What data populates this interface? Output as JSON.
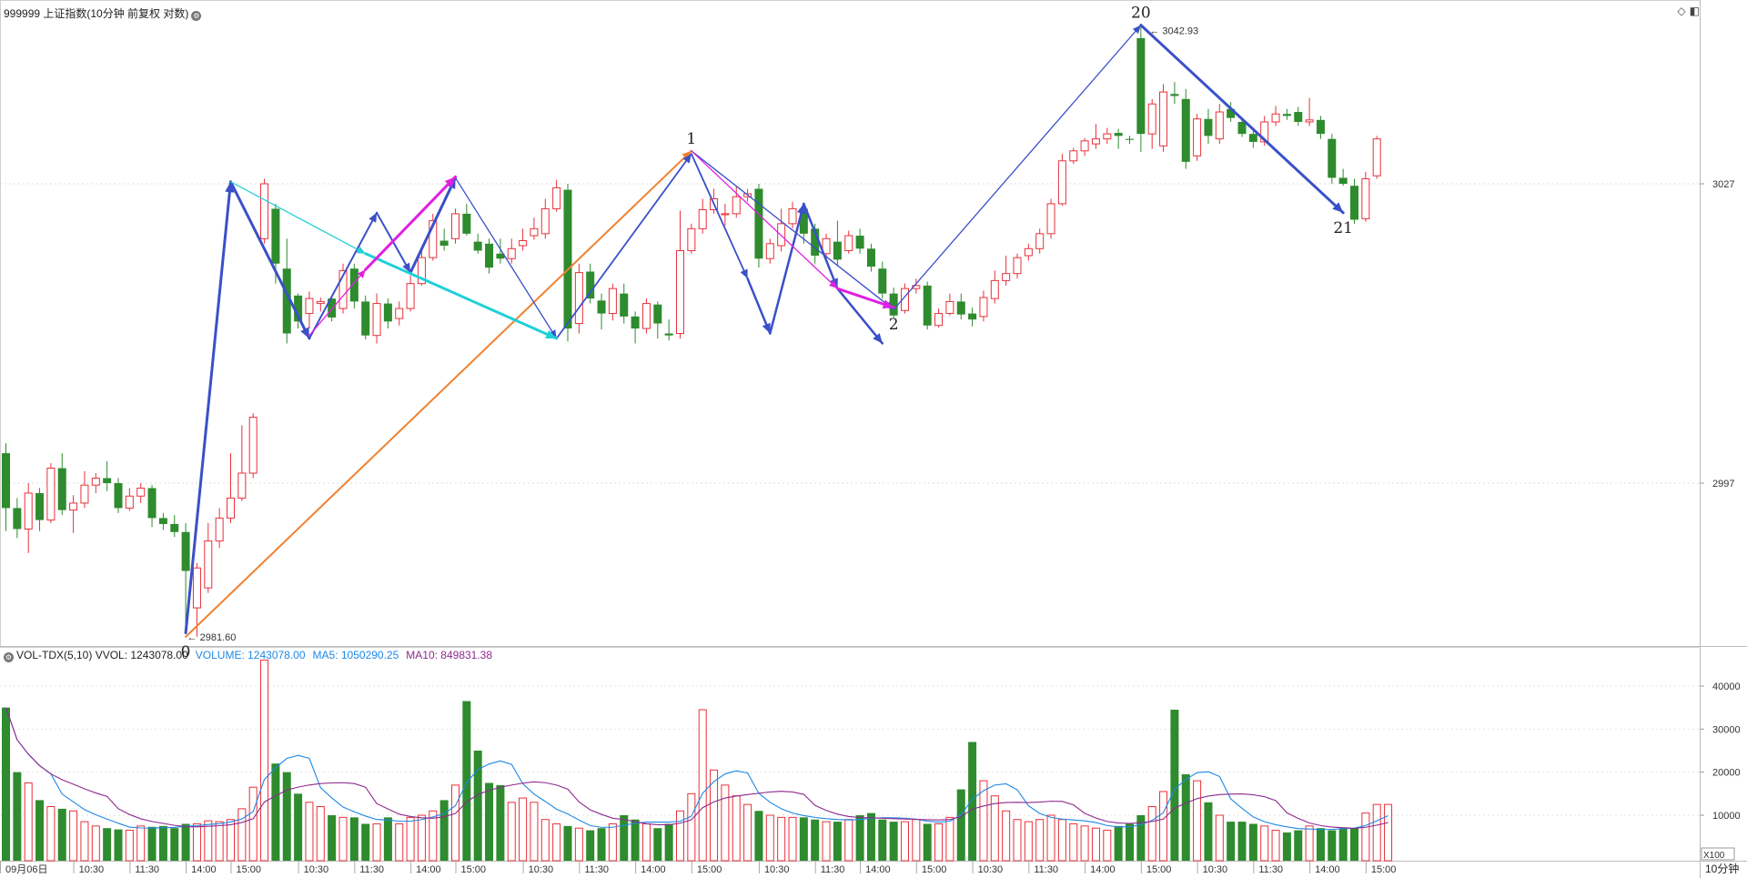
{
  "header": {
    "price_title": "999999 上证指数(10分钟 前复权 对数)",
    "vol_title": "VOL-TDX(5,10) VVOL: 1243078.00",
    "volume_label": "VOLUME: 1243078.00",
    "ma5_label": "MA5: 1050290.25",
    "ma10_label": "MA10: 849831.38"
  },
  "colors": {
    "up": "#e8313a",
    "down": "#2e8b2e",
    "volume": "#1e88e5",
    "ma5": "#1e88e5",
    "ma10": "#8e2a8e",
    "wave_blue": "#3a50c8",
    "wave_magenta": "#e020e0",
    "wave_cyan": "#20d0d8",
    "wave_orange": "#f08030"
  },
  "icons": [
    "gear-icon",
    "diamond-icon",
    "window-icon"
  ],
  "chart_data": {
    "type": "candlestick",
    "y_ticks": [
      "3027",
      "2997"
    ],
    "vol_ticks": [
      "40000",
      "30000",
      "20000",
      "10000"
    ],
    "vol_unit": "X100",
    "period_label": "10分钟",
    "x_labels": [
      "09月06日",
      "10:30",
      "11:30",
      "14:00",
      "15:00",
      "10:30",
      "11:30",
      "14:00",
      "15:00",
      "10:30",
      "11:30",
      "14:00",
      "15:00",
      "10:30",
      "11:30",
      "14:00",
      "15:00",
      "10:30",
      "11:30",
      "14:00",
      "15:00",
      "10:30",
      "11:30",
      "14:00",
      "15:00"
    ],
    "high_label": "3042.93",
    "low_label": "2981.60",
    "wave_labels": [
      {
        "text": "0",
        "bar": 16,
        "price": 2981.6
      },
      {
        "text": "1",
        "bar": 61,
        "price": 3030.3
      },
      {
        "text": "2",
        "bar": 79,
        "price": 3014.4
      },
      {
        "text": "20",
        "bar": 101,
        "price": 3042.9
      },
      {
        "text": "21",
        "bar": 119,
        "price": 3024.1
      }
    ],
    "candles": [
      [
        3000.0,
        2994.5,
        3001.0,
        2992.2
      ],
      [
        2994.5,
        2992.4,
        2995.5,
        2991.5
      ],
      [
        2992.4,
        2996.0,
        2997.0,
        2990.0
      ],
      [
        2996.0,
        2993.3,
        2996.5,
        2992.2
      ],
      [
        2993.3,
        2998.5,
        2999.0,
        2993.0
      ],
      [
        2998.5,
        2994.3,
        3000.0,
        2993.8
      ],
      [
        2994.3,
        2995.0,
        2995.8,
        2992.0
      ],
      [
        2995.0,
        2996.8,
        2998.2,
        2994.5
      ],
      [
        2996.8,
        2997.5,
        2998.0,
        2996.0
      ],
      [
        2997.5,
        2997.0,
        2999.2,
        2996.2
      ],
      [
        2997.0,
        2994.5,
        2997.5,
        2994.0
      ],
      [
        2994.5,
        2995.7,
        2996.5,
        2994.2
      ],
      [
        2995.7,
        2996.5,
        2997.0,
        2995.0
      ],
      [
        2996.5,
        2993.5,
        2996.8,
        2992.6
      ],
      [
        2993.5,
        2992.9,
        2994.0,
        2992.3
      ],
      [
        2992.9,
        2992.1,
        2993.8,
        2991.6
      ],
      [
        2992.1,
        2988.2,
        2993.0,
        2982.5
      ],
      [
        2984.5,
        2988.5,
        2989.0,
        2981.6
      ],
      [
        2986.5,
        2991.2,
        2993.0,
        2986.0
      ],
      [
        2991.2,
        2993.5,
        2994.5,
        2990.5
      ],
      [
        2993.5,
        2995.5,
        3000.0,
        2993.0
      ],
      [
        2995.5,
        2998.0,
        3002.8,
        2995.2
      ],
      [
        2998.0,
        3003.6,
        3004.0,
        2997.5
      ],
      [
        3021.5,
        3027.0,
        3027.5,
        3021.0
      ],
      [
        3024.5,
        3019.0,
        3025.0,
        3017.0
      ],
      [
        3018.5,
        3012.0,
        3021.5,
        3011.0
      ],
      [
        3015.8,
        3013.2,
        3016.0,
        3012.5
      ],
      [
        3014.0,
        3015.5,
        3016.2,
        3012.5
      ],
      [
        3015.0,
        3015.2,
        3015.6,
        3014.2
      ],
      [
        3015.5,
        3013.6,
        3015.7,
        3013.2
      ],
      [
        3014.5,
        3018.3,
        3019.0,
        3014.0
      ],
      [
        3018.5,
        3015.2,
        3019.0,
        3014.5
      ],
      [
        3015.2,
        3011.8,
        3015.8,
        3011.4
      ],
      [
        3011.8,
        3015.0,
        3016.0,
        3011.0
      ],
      [
        3015.0,
        3013.2,
        3015.5,
        3012.5
      ],
      [
        3013.5,
        3014.5,
        3015.2,
        3012.8
      ],
      [
        3014.5,
        3017.0,
        3017.8,
        3014.2
      ],
      [
        3017.0,
        3019.6,
        3020.5,
        3016.8
      ],
      [
        3019.6,
        3023.3,
        3024.0,
        3019.3
      ],
      [
        3021.3,
        3020.8,
        3022.5,
        3020.3
      ],
      [
        3021.5,
        3024.0,
        3024.5,
        3021.0
      ],
      [
        3024.0,
        3022.0,
        3025.0,
        3021.8
      ],
      [
        3021.2,
        3020.3,
        3022.0,
        3020.0
      ],
      [
        3021.0,
        3018.6,
        3021.5,
        3018.0
      ],
      [
        3020.0,
        3019.5,
        3021.5,
        3019.0
      ],
      [
        3019.5,
        3020.5,
        3021.5,
        3019.0
      ],
      [
        3020.8,
        3021.3,
        3022.5,
        3020.3
      ],
      [
        3021.8,
        3022.5,
        3023.6,
        3021.4
      ],
      [
        3022.0,
        3024.5,
        3025.5,
        3021.5
      ],
      [
        3024.5,
        3026.6,
        3027.4,
        3024.2
      ],
      [
        3026.4,
        3012.5,
        3027.0,
        3011.2
      ],
      [
        3013.0,
        3018.1,
        3019.0,
        3012.0
      ],
      [
        3018.2,
        3015.5,
        3019.0,
        3015.0
      ],
      [
        3015.3,
        3014.0,
        3016.0,
        3012.4
      ],
      [
        3014.0,
        3016.5,
        3017.0,
        3013.3
      ],
      [
        3016.0,
        3013.7,
        3017.0,
        3013.0
      ],
      [
        3013.7,
        3012.5,
        3014.2,
        3011.0
      ],
      [
        3012.5,
        3015.0,
        3015.5,
        3012.0
      ],
      [
        3014.9,
        3013.0,
        3015.2,
        3011.5
      ],
      [
        3012.0,
        3011.8,
        3013.4,
        3011.3
      ],
      [
        3012.0,
        3020.3,
        3024.3,
        3011.5
      ],
      [
        3020.3,
        3022.5,
        3023.0,
        3020.0
      ],
      [
        3022.5,
        3024.4,
        3025.5,
        3022.0
      ],
      [
        3024.4,
        3025.5,
        3026.5,
        3024.0
      ],
      [
        3023.9,
        3024.0,
        3025.0,
        3022.8
      ],
      [
        3024.0,
        3025.7,
        3026.8,
        3023.6
      ],
      [
        3025.7,
        3026.0,
        3026.5,
        3025.2
      ],
      [
        3026.5,
        3019.5,
        3027.0,
        3018.6
      ],
      [
        3019.5,
        3021.0,
        3021.5,
        3019.0
      ],
      [
        3020.8,
        3023.0,
        3024.5,
        3020.2
      ],
      [
        3023.0,
        3024.5,
        3025.2,
        3022.5
      ],
      [
        3024.5,
        3022.0,
        3025.0,
        3021.0
      ],
      [
        3022.5,
        3019.8,
        3023.0,
        3019.0
      ],
      [
        3020.0,
        3021.5,
        3022.0,
        3019.5
      ],
      [
        3021.2,
        3019.4,
        3023.3,
        3018.8
      ],
      [
        3020.3,
        3021.8,
        3022.3,
        3020.0
      ],
      [
        3021.8,
        3020.5,
        3022.5,
        3020.0
      ],
      [
        3020.5,
        3018.7,
        3021.0,
        3018.2
      ],
      [
        3018.5,
        3016.0,
        3019.2,
        3015.5
      ],
      [
        3016.0,
        3013.8,
        3016.6,
        3013.5
      ],
      [
        3014.3,
        3016.5,
        3017.0,
        3014.0
      ],
      [
        3016.5,
        3016.8,
        3017.5,
        3016.0
      ],
      [
        3016.8,
        3012.8,
        3017.2,
        3012.4
      ],
      [
        3012.8,
        3014.0,
        3014.5,
        3012.6
      ],
      [
        3014.0,
        3015.2,
        3016.0,
        3013.8
      ],
      [
        3015.2,
        3013.9,
        3016.0,
        3013.4
      ],
      [
        3014.0,
        3013.4,
        3014.6,
        3012.7
      ],
      [
        3013.7,
        3015.6,
        3016.3,
        3013.2
      ],
      [
        3015.5,
        3017.3,
        3018.3,
        3015.0
      ],
      [
        3017.3,
        3018.0,
        3019.8,
        3016.8
      ],
      [
        3018.0,
        3019.6,
        3020.0,
        3017.5
      ],
      [
        3019.8,
        3020.5,
        3021.0,
        3019.3
      ],
      [
        3020.5,
        3022.0,
        3022.5,
        3020.0
      ],
      [
        3022.0,
        3025.0,
        3025.5,
        3021.5
      ],
      [
        3025.0,
        3029.3,
        3030.0,
        3024.8
      ],
      [
        3029.3,
        3030.3,
        3030.6,
        3029.0
      ],
      [
        3030.3,
        3031.3,
        3031.6,
        3029.8
      ],
      [
        3031.0,
        3031.5,
        3033.0,
        3030.5
      ],
      [
        3031.5,
        3032.0,
        3032.6,
        3031.0
      ],
      [
        3032.1,
        3031.8,
        3032.5,
        3030.5
      ],
      [
        3031.5,
        3031.4,
        3031.8,
        3031.0
      ],
      [
        3041.6,
        3032.0,
        3042.9,
        3030.2
      ],
      [
        3032.0,
        3035.0,
        3035.5,
        3030.5
      ],
      [
        3030.8,
        3036.2,
        3037.0,
        3030.2
      ],
      [
        3036.0,
        3035.8,
        3037.2,
        3035.0
      ],
      [
        3035.5,
        3029.2,
        3036.5,
        3028.5
      ],
      [
        3029.8,
        3033.5,
        3034.0,
        3029.3
      ],
      [
        3033.5,
        3031.8,
        3034.5,
        3031.0
      ],
      [
        3031.5,
        3034.2,
        3035.0,
        3031.0
      ],
      [
        3034.5,
        3033.6,
        3035.2,
        3033.2
      ],
      [
        3033.2,
        3032.0,
        3033.7,
        3031.7
      ],
      [
        3032.0,
        3031.2,
        3032.6,
        3030.6
      ],
      [
        3031.2,
        3033.2,
        3033.8,
        3030.8
      ],
      [
        3033.2,
        3034.0,
        3034.8,
        3032.8
      ],
      [
        3034.0,
        3033.8,
        3034.5,
        3033.4
      ],
      [
        3034.2,
        3033.2,
        3034.7,
        3032.8
      ],
      [
        3033.2,
        3033.4,
        3035.6,
        3032.8
      ],
      [
        3033.4,
        3032.0,
        3033.8,
        3031.5
      ],
      [
        3031.5,
        3027.6,
        3032.0,
        3027.0
      ],
      [
        3027.6,
        3027.0,
        3028.5,
        3026.8
      ],
      [
        3026.8,
        3023.4,
        3027.5,
        3023.0
      ],
      [
        3023.5,
        3027.5,
        3028.2,
        3023.2
      ],
      [
        3027.8,
        3031.5,
        3031.8,
        3027.5
      ]
    ],
    "volume": [
      35000,
      20000,
      17500,
      13500,
      12000,
      11500,
      11000,
      8500,
      7500,
      7000,
      6700,
      6500,
      7500,
      7300,
      7500,
      7000,
      8000,
      8000,
      8700,
      8500,
      9000,
      11500,
      16500,
      46000,
      22000,
      20000,
      15000,
      13000,
      12000,
      10000,
      9500,
      9500,
      8000,
      8000,
      9500,
      8000,
      9500,
      10000,
      11000,
      13500,
      17000,
      36500,
      25000,
      17500,
      17000,
      13000,
      14000,
      13000,
      9000,
      8000,
      7500,
      7000,
      6500,
      7000,
      8000,
      10000,
      9000,
      8000,
      7000,
      8000,
      11000,
      15000,
      34500,
      20500,
      17000,
      14500,
      12500,
      11000,
      10000,
      9500,
      9500,
      9500,
      9000,
      8500,
      8500,
      9000,
      10000,
      10500,
      9000,
      8500,
      8500,
      9000,
      8000,
      8000,
      9500,
      16000,
      27000,
      18000,
      14500,
      11000,
      9000,
      8500,
      9000,
      10000,
      9000,
      8000,
      7500,
      7000,
      6500,
      7500,
      8000,
      10000,
      12000,
      15500,
      34500,
      19500,
      18000,
      13000,
      10000,
      8500,
      8500,
      8000,
      7500,
      6500,
      6000,
      6500,
      7500,
      7000,
      6500,
      7000,
      7000,
      10500,
      12500,
      12500
    ],
    "waves": [
      {
        "color": "wave_orange",
        "width": 2,
        "from": [
          16,
          2981.6
        ],
        "to": [
          61,
          3030.3
        ]
      },
      {
        "color": "wave_blue",
        "width": 1.3,
        "from": [
          61,
          3030.3
        ],
        "to": [
          79,
          3014.4
        ]
      },
      {
        "color": "wave_blue",
        "width": 1.3,
        "from": [
          79,
          3014.4
        ],
        "to": [
          101,
          3042.9
        ]
      },
      {
        "color": "wave_blue",
        "width": 3,
        "from": [
          101,
          3042.9
        ],
        "to": [
          119,
          3024.1
        ]
      },
      {
        "color": "wave_blue",
        "width": 3,
        "from": [
          16,
          2982.0
        ],
        "to": [
          20,
          3027.2
        ]
      },
      {
        "color": "wave_blue",
        "width": 3,
        "from": [
          20,
          3027.2
        ],
        "to": [
          27,
          3011.5
        ]
      },
      {
        "color": "wave_blue",
        "width": 2,
        "from": [
          27,
          3011.5
        ],
        "to": [
          33,
          3024.1
        ]
      },
      {
        "color": "wave_blue",
        "width": 2,
        "from": [
          33,
          3024.1
        ],
        "to": [
          36,
          3018.1
        ]
      },
      {
        "color": "wave_blue",
        "width": 3,
        "from": [
          36,
          3018.1
        ],
        "to": [
          40,
          3027.6
        ]
      },
      {
        "color": "wave_blue",
        "width": 1.3,
        "from": [
          40,
          3027.6
        ],
        "to": [
          49,
          3011.5
        ]
      },
      {
        "color": "wave_blue",
        "width": 1.8,
        "from": [
          49,
          3011.5
        ],
        "to": [
          61,
          3030.0
        ]
      },
      {
        "color": "wave_blue",
        "width": 1.8,
        "from": [
          61,
          3030.0
        ],
        "to": [
          66,
          3017.5
        ]
      },
      {
        "color": "wave_blue",
        "width": 2.5,
        "from": [
          66,
          3017.5
        ],
        "to": [
          68,
          3012.0
        ]
      },
      {
        "color": "wave_blue",
        "width": 2.5,
        "from": [
          68,
          3012.0
        ],
        "to": [
          71,
          3025.0
        ]
      },
      {
        "color": "wave_blue",
        "width": 2.5,
        "from": [
          71,
          3025.0
        ],
        "to": [
          74,
          3016.5
        ]
      },
      {
        "color": "wave_blue",
        "width": 2.5,
        "from": [
          74,
          3016.5
        ],
        "to": [
          78,
          3011.0
        ]
      },
      {
        "color": "wave_cyan",
        "width": 1.3,
        "from": [
          20,
          3027.2
        ],
        "to": [
          32,
          3020.0
        ]
      },
      {
        "color": "wave_cyan",
        "width": 3,
        "from": [
          32,
          3020.0
        ],
        "to": [
          49,
          3011.5
        ]
      },
      {
        "color": "wave_magenta",
        "width": 1.3,
        "from": [
          27,
          3011.8
        ],
        "to": [
          32,
          3018.4
        ]
      },
      {
        "color": "wave_magenta",
        "width": 3,
        "from": [
          32,
          3018.4
        ],
        "to": [
          40,
          3027.7
        ]
      },
      {
        "color": "wave_magenta",
        "width": 1.3,
        "from": [
          61,
          3030.3
        ],
        "to": [
          74,
          3016.5
        ]
      },
      {
        "color": "wave_magenta",
        "width": 3,
        "from": [
          74,
          3016.5
        ],
        "to": [
          79,
          3014.6
        ]
      }
    ]
  }
}
